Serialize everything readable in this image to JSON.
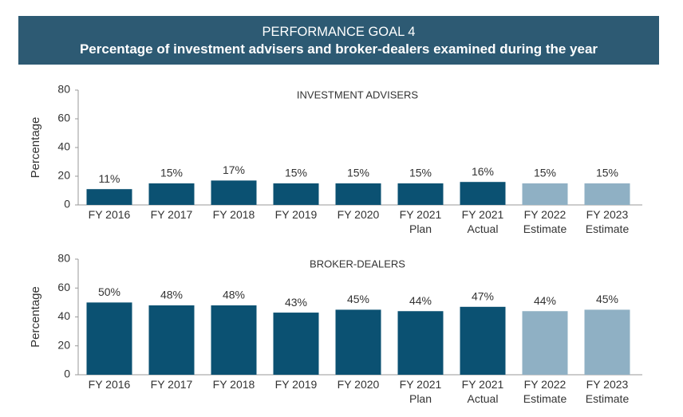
{
  "header": {
    "title": "PERFORMANCE GOAL 4",
    "subtitle": "Percentage of investment advisers and broker-dealers examined during the year"
  },
  "chart_data": [
    {
      "type": "bar",
      "title": "INVESTMENT ADVISERS",
      "y_label": "Percentage",
      "categories": [
        "FY 2016",
        "FY 2017",
        "FY 2018",
        "FY 2019",
        "FY 2020",
        "FY 2021 Plan",
        "FY 2021 Actual",
        "FY 2022 Estimate",
        "FY 2023 Estimate"
      ],
      "values": [
        11,
        15,
        17,
        15,
        15,
        15,
        16,
        15,
        15
      ],
      "value_labels": [
        "11%",
        "15%",
        "17%",
        "15%",
        "15%",
        "15%",
        "16%",
        "15%",
        "15%"
      ],
      "colors": [
        "#0b5172",
        "#0b5172",
        "#0b5172",
        "#0b5172",
        "#0b5172",
        "#0b5172",
        "#0b5172",
        "#8fb0c4",
        "#8fb0c4"
      ],
      "ylim": [
        0,
        80
      ],
      "yticks": [
        0,
        20,
        40,
        60,
        80
      ]
    },
    {
      "type": "bar",
      "title": "BROKER-DEALERS",
      "y_label": "Percentage",
      "categories": [
        "FY 2016",
        "FY 2017",
        "FY 2018",
        "FY 2019",
        "FY 2020",
        "FY 2021 Plan",
        "FY 2021 Actual",
        "FY 2022 Estimate",
        "FY 2023 Estimate"
      ],
      "values": [
        50,
        48,
        48,
        43,
        45,
        44,
        47,
        44,
        45
      ],
      "value_labels": [
        "50%",
        "48%",
        "48%",
        "43%",
        "45%",
        "44%",
        "47%",
        "44%",
        "45%"
      ],
      "colors": [
        "#0b5172",
        "#0b5172",
        "#0b5172",
        "#0b5172",
        "#0b5172",
        "#0b5172",
        "#0b5172",
        "#8fb0c4",
        "#8fb0c4"
      ],
      "ylim": [
        0,
        80
      ],
      "yticks": [
        0,
        20,
        40,
        60,
        80
      ]
    }
  ]
}
